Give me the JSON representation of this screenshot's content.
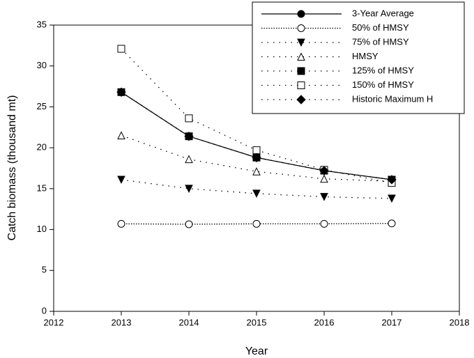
{
  "chart_data": {
    "type": "line",
    "x_label": "Year",
    "y_label": "Catch biomass (thousand mt)",
    "x": [
      2013,
      2014,
      2015,
      2016,
      2017
    ],
    "xlim": [
      2012,
      2018
    ],
    "xticks": [
      2012,
      2013,
      2014,
      2015,
      2016,
      2017,
      2018
    ],
    "ylim": [
      0,
      35
    ],
    "yticks": [
      0,
      5,
      10,
      15,
      20,
      25,
      30,
      35
    ],
    "legend": "top-right",
    "series": [
      {
        "name": "3-Year Average",
        "color": "#000000",
        "line_style": "solid",
        "marker": "circle-filled",
        "values": [
          26.8,
          21.4,
          18.8,
          17.2,
          16.1
        ]
      },
      {
        "name": "50% of HMSY",
        "color": "#000000",
        "line_style": "dotted",
        "marker": "circle-open",
        "values": [
          10.7,
          10.65,
          10.7,
          10.7,
          10.75
        ]
      },
      {
        "name": "75% of HMSY",
        "color": "#000000",
        "line_style": "sparse",
        "marker": "triangle-down-filled",
        "values": [
          16.1,
          15.0,
          14.4,
          14.0,
          13.8
        ]
      },
      {
        "name": "HMSY",
        "color": "#000000",
        "line_style": "sparse",
        "marker": "triangle-open",
        "values": [
          21.5,
          18.6,
          17.1,
          16.2,
          15.9
        ]
      },
      {
        "name": "125% of HMSY",
        "color": "#000000",
        "line_style": "sparse",
        "marker": "square-filled",
        "values": [
          26.8,
          21.4,
          18.8,
          17.2,
          16.1
        ]
      },
      {
        "name": "150% of HMSY",
        "color": "#000000",
        "line_style": "sparse",
        "marker": "square-open",
        "values": [
          32.1,
          23.6,
          19.7,
          17.3,
          15.7
        ]
      },
      {
        "name": "Historic Maximum H",
        "color": "#000000",
        "line_style": "sparse",
        "marker": "diamond-filled",
        "values": [
          26.8,
          21.4,
          18.8,
          17.2,
          16.1
        ]
      }
    ]
  }
}
